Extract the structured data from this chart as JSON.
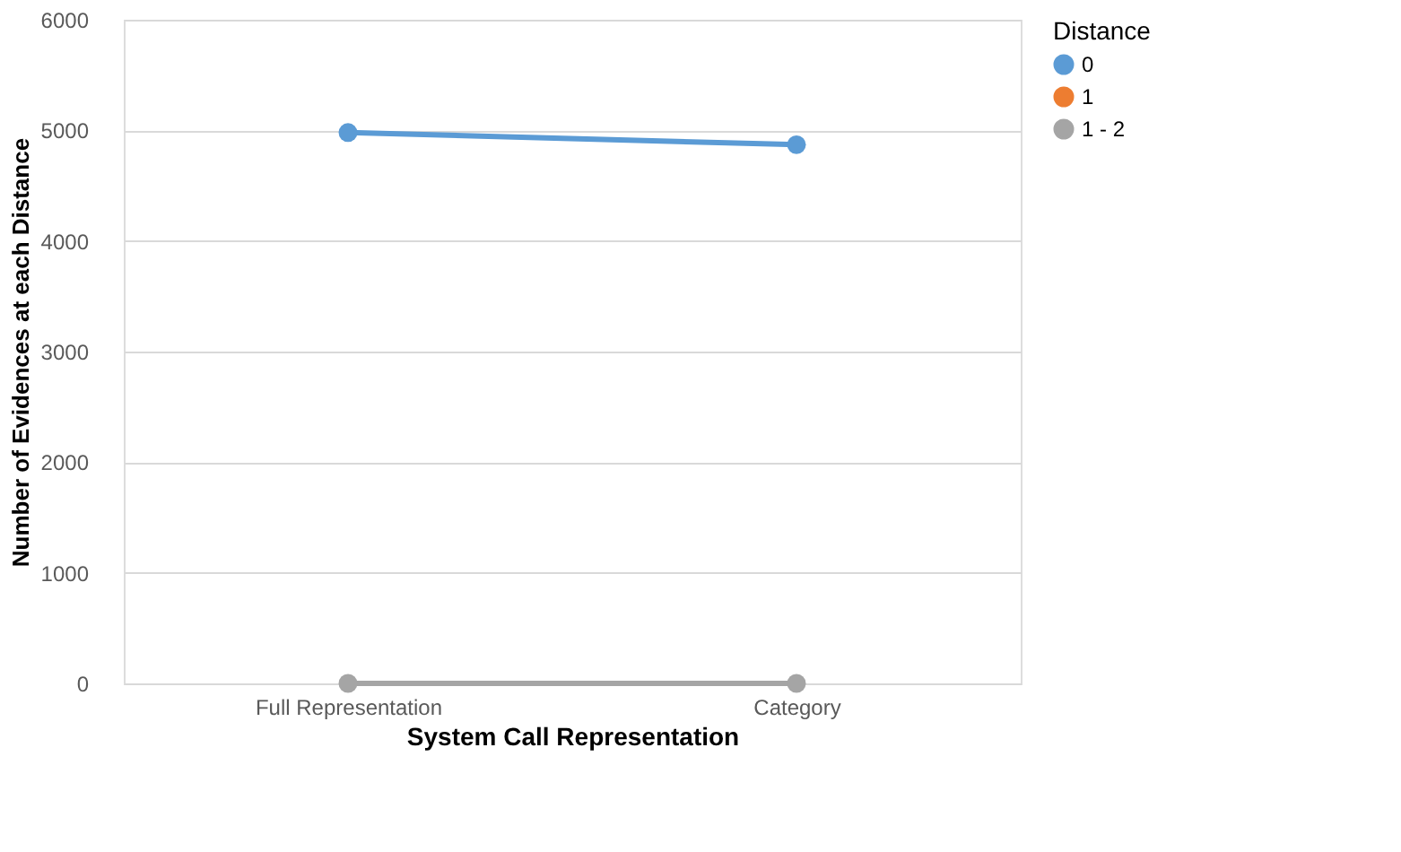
{
  "chart_data": {
    "type": "line",
    "xlabel": "System Call Representation",
    "ylabel": "Number of Evidences at each Distance",
    "legend_title": "Distance",
    "categories": [
      "Full Representation",
      "Category"
    ],
    "series": [
      {
        "name": "0",
        "color": "#5b9bd5",
        "values": [
          4980,
          4870
        ]
      },
      {
        "name": "1",
        "color": "#ed7d31",
        "values": [
          null,
          null
        ]
      },
      {
        "name": "1 - 2",
        "color": "#a5a5a5",
        "values": [
          0,
          0
        ]
      }
    ],
    "ylim": [
      0,
      6000
    ],
    "yticks": [
      0,
      1000,
      2000,
      3000,
      4000,
      5000,
      6000
    ],
    "grid": "y",
    "legend": "right",
    "marker": "circle",
    "line_style": "solid"
  }
}
